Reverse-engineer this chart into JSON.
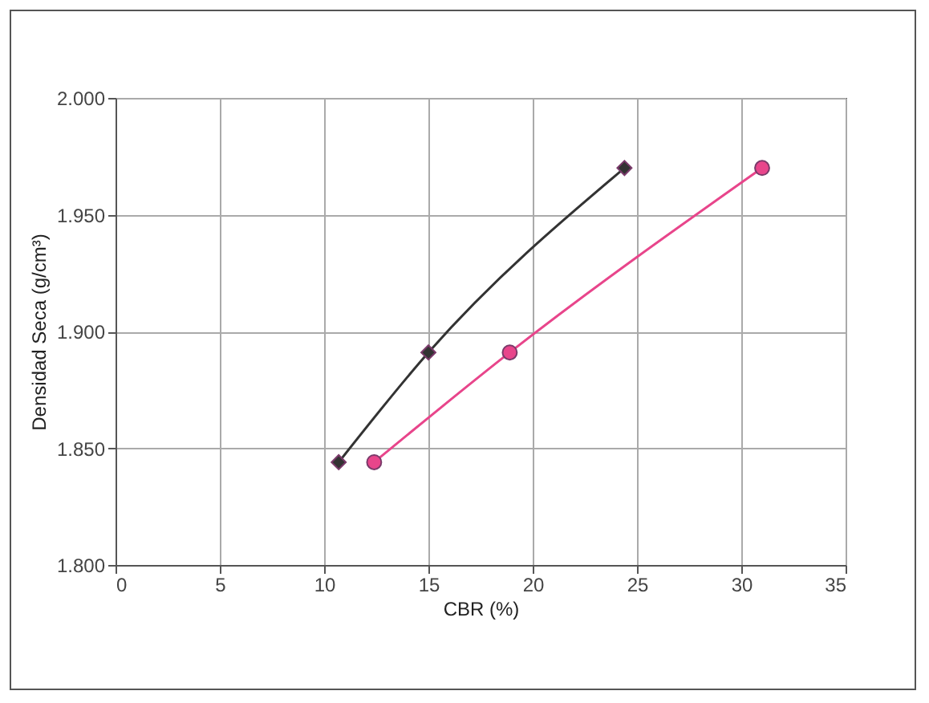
{
  "chart_data": {
    "type": "line",
    "xlabel": "CBR  (%)",
    "ylabel": "Densidad Seca (g/cm³)",
    "xlim": [
      0,
      35
    ],
    "xticks": [
      0,
      5,
      10,
      15,
      20,
      25,
      30,
      35
    ],
    "ylim": [
      1.8,
      2.0
    ],
    "yticks": [
      {
        "value": 1.8,
        "label": "1.800"
      },
      {
        "value": 1.85,
        "label": "1.850"
      },
      {
        "value": 1.9,
        "label": "1.900"
      },
      {
        "value": 1.95,
        "label": "1.950"
      },
      {
        "value": 2.0,
        "label": "2.000"
      }
    ],
    "grid": true,
    "series": [
      {
        "color": "#333333",
        "marker": "diamond",
        "x": [
          10.7,
          15.0,
          24.4
        ],
        "values": [
          1.844,
          1.891,
          1.97
        ]
      },
      {
        "color": "#e8458b",
        "marker": "circle",
        "x": [
          12.4,
          18.9,
          31.0
        ],
        "values": [
          1.844,
          1.891,
          1.97
        ]
      }
    ]
  }
}
